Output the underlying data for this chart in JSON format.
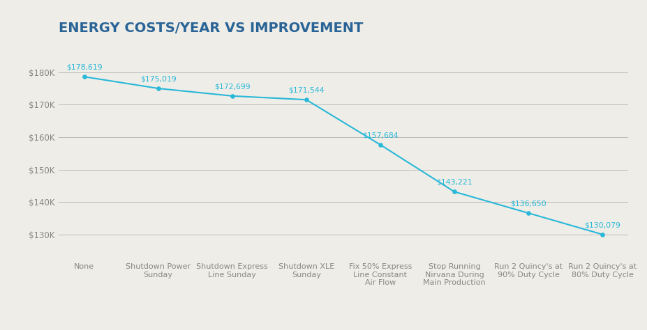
{
  "title": "ENERGY COSTS/YEAR VS IMPROVEMENT",
  "categories": [
    "None",
    "Shutdown Power\nSunday",
    "Shutdown Express\nLine Sunday",
    "Shutdown XLE\nSunday",
    "Fix 50% Express\nLine Constant\nAir Flow",
    "Stop Running\nNirvana During\nMain Production",
    "Run 2 Quincy's at\n90% Duty Cycle",
    "Run 2 Quincy's at\n80% Duty Cycle"
  ],
  "values": [
    178619,
    175019,
    172699,
    171544,
    157684,
    143221,
    136650,
    130079
  ],
  "labels": [
    "$178,619",
    "$175,019",
    "$172,699",
    "$171,544",
    "$157,684",
    "$143,221",
    "$136,650",
    "$130,079"
  ],
  "line_color": "#29b8d8",
  "marker_color": "#29b8d8",
  "label_color": "#29b8d8",
  "title_color": "#2a6496",
  "background_color": "#eeede8",
  "grid_color": "#bbbbbb",
  "tick_label_color": "#888880",
  "yticks": [
    130000,
    140000,
    150000,
    160000,
    170000,
    180000
  ],
  "ylim": [
    123000,
    187000
  ],
  "title_fontsize": 14,
  "axis_label_fontsize": 8.0,
  "data_label_fontsize": 7.8
}
